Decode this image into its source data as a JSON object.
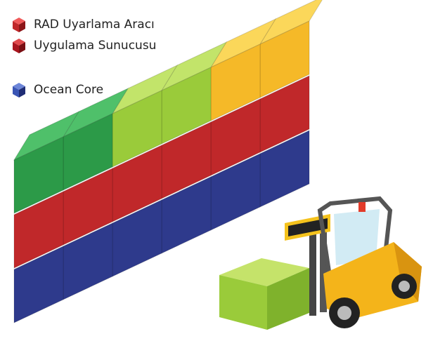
{
  "legend": [
    {
      "label": "RAD Uyarlama Aracı"
    },
    {
      "label": "Uygulama Sunucusu"
    },
    {
      "label": "Ocean Core"
    }
  ]
}
